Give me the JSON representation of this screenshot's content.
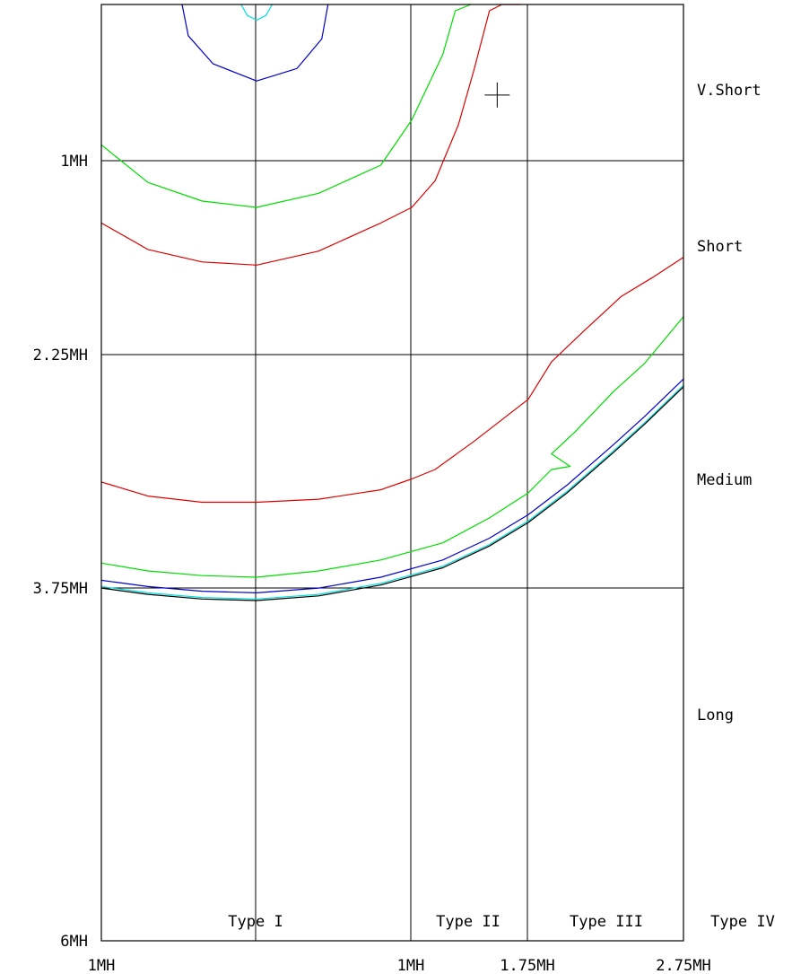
{
  "chart_data": {
    "type": "line",
    "title": "",
    "xlabel": "",
    "ylabel": "",
    "grid": true,
    "x_ticks": [
      "1MH",
      "1MH",
      "1.75MH",
      "2.75MH"
    ],
    "y_ticks": [
      "1MH",
      "2.25MH",
      "3.75MH",
      "6MH"
    ],
    "zones_x": [
      "Type I",
      "Type II",
      "Type III",
      "Type IV"
    ],
    "zones_y": [
      "V.Short",
      "Short",
      "Medium",
      "Long"
    ],
    "cursor": [
      2.55,
      0.58
    ],
    "xlim": [
      0,
      3.75
    ],
    "ylim": [
      0,
      6
    ],
    "series": [
      {
        "color": "#00dddd",
        "values": [
          [
            0.9,
            0.0
          ],
          [
            0.94,
            0.07
          ],
          [
            1.0,
            0.1
          ],
          [
            1.06,
            0.07
          ],
          [
            1.1,
            0.0
          ]
        ]
      },
      {
        "color": "#0000cc",
        "values": [
          [
            0.52,
            0.0
          ],
          [
            0.56,
            0.2
          ],
          [
            0.72,
            0.38
          ],
          [
            1.0,
            0.49
          ],
          [
            1.26,
            0.41
          ],
          [
            1.42,
            0.22
          ],
          [
            1.46,
            0.0
          ]
        ]
      },
      {
        "color": "#00dd00",
        "values": [
          [
            0.0,
            0.9
          ],
          [
            0.3,
            1.14
          ],
          [
            0.65,
            1.26
          ],
          [
            1.0,
            1.3
          ],
          [
            1.4,
            1.21
          ],
          [
            1.8,
            1.03
          ],
          [
            2.0,
            0.74
          ],
          [
            2.2,
            0.32
          ],
          [
            2.28,
            0.04
          ],
          [
            2.38,
            0.0
          ]
        ]
      },
      {
        "color": "#dd0000",
        "values": [
          [
            0.0,
            1.4
          ],
          [
            0.3,
            1.57
          ],
          [
            0.65,
            1.65
          ],
          [
            1.0,
            1.67
          ],
          [
            1.4,
            1.58
          ],
          [
            1.8,
            1.4
          ],
          [
            2.0,
            1.3
          ],
          [
            2.15,
            1.13
          ],
          [
            2.3,
            0.77
          ],
          [
            2.4,
            0.42
          ],
          [
            2.5,
            0.04
          ],
          [
            2.58,
            0.0
          ],
          [
            2.7,
            0.0
          ]
        ]
      },
      {
        "color": "#dd0000",
        "values": [
          [
            0.0,
            3.06
          ],
          [
            0.3,
            3.15
          ],
          [
            0.65,
            3.19
          ],
          [
            1.0,
            3.19
          ],
          [
            1.4,
            3.17
          ],
          [
            1.8,
            3.11
          ],
          [
            2.0,
            3.04
          ],
          [
            2.15,
            2.98
          ],
          [
            2.4,
            2.8
          ],
          [
            2.75,
            2.53
          ],
          [
            2.9,
            2.29
          ],
          [
            3.1,
            2.1
          ],
          [
            3.35,
            1.87
          ],
          [
            3.55,
            1.75
          ],
          [
            3.75,
            1.62
          ]
        ]
      },
      {
        "color": "#00dd00",
        "values": [
          [
            0.0,
            3.58
          ],
          [
            0.3,
            3.63
          ],
          [
            0.65,
            3.66
          ],
          [
            1.0,
            3.67
          ],
          [
            1.4,
            3.63
          ],
          [
            1.8,
            3.56
          ],
          [
            2.2,
            3.45
          ],
          [
            2.5,
            3.29
          ],
          [
            2.75,
            3.13
          ],
          [
            2.9,
            2.98
          ],
          [
            3.02,
            2.96
          ],
          [
            2.9,
            2.88
          ],
          [
            3.05,
            2.74
          ],
          [
            3.3,
            2.48
          ],
          [
            3.5,
            2.3
          ],
          [
            3.75,
            2.0
          ]
        ]
      },
      {
        "color": "#0000cc",
        "values": [
          [
            0.0,
            3.69
          ],
          [
            0.3,
            3.73
          ],
          [
            0.65,
            3.76
          ],
          [
            1.0,
            3.77
          ],
          [
            1.4,
            3.74
          ],
          [
            1.8,
            3.67
          ],
          [
            2.2,
            3.56
          ],
          [
            2.5,
            3.42
          ],
          [
            2.75,
            3.27
          ],
          [
            3.0,
            3.08
          ],
          [
            3.3,
            2.82
          ],
          [
            3.5,
            2.64
          ],
          [
            3.75,
            2.4
          ]
        ]
      },
      {
        "color": "#00dddd",
        "values": [
          [
            0.0,
            3.73
          ],
          [
            0.3,
            3.77
          ],
          [
            0.65,
            3.8
          ],
          [
            1.0,
            3.81
          ],
          [
            1.4,
            3.78
          ],
          [
            1.8,
            3.71
          ],
          [
            2.2,
            3.6
          ],
          [
            2.5,
            3.46
          ],
          [
            2.75,
            3.31
          ],
          [
            3.0,
            3.12
          ],
          [
            3.3,
            2.86
          ],
          [
            3.5,
            2.68
          ],
          [
            3.75,
            2.44
          ]
        ]
      },
      {
        "color": "#000000",
        "values": [
          [
            0.0,
            3.74
          ],
          [
            0.3,
            3.78
          ],
          [
            0.65,
            3.81
          ],
          [
            1.0,
            3.82
          ],
          [
            1.4,
            3.79
          ],
          [
            1.8,
            3.72
          ],
          [
            2.2,
            3.61
          ],
          [
            2.5,
            3.47
          ],
          [
            2.75,
            3.32
          ],
          [
            3.0,
            3.13
          ],
          [
            3.3,
            2.87
          ],
          [
            3.5,
            2.69
          ],
          [
            3.75,
            2.45
          ]
        ]
      }
    ]
  },
  "colors": {
    "axis": "#000000",
    "background": "#ffffff"
  }
}
